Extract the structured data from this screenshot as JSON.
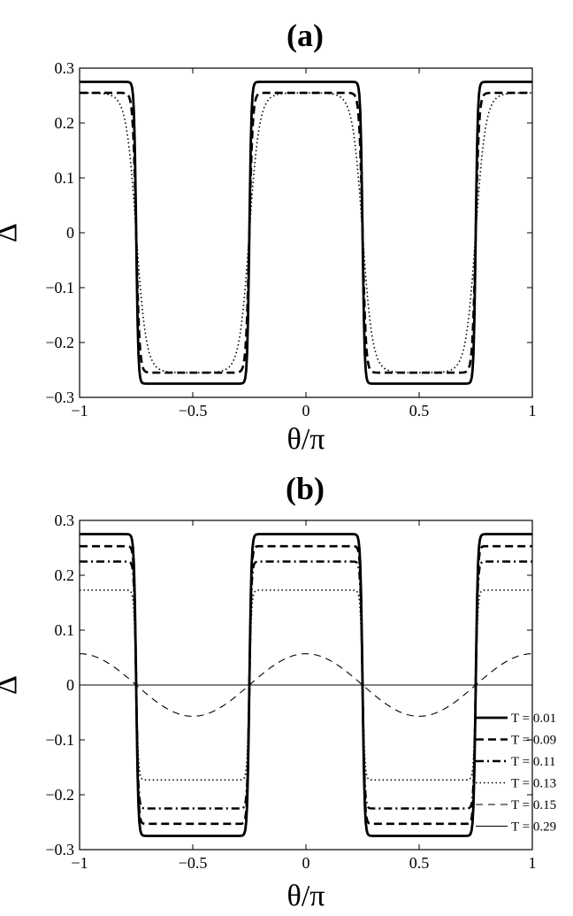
{
  "chart_data": [
    {
      "type": "line",
      "title": "(a)",
      "xlabel": "θ/π",
      "ylabel": "Δ",
      "xlim": [
        -1,
        1
      ],
      "ylim": [
        -0.3,
        0.3
      ],
      "xticks": [
        "−1",
        "−0.5",
        "0",
        "0.5",
        "1"
      ],
      "yticks": [
        "0.3",
        "0.2",
        "0.1",
        "0",
        "−0.1",
        "−0.2",
        "−0.3"
      ],
      "grid": false,
      "series": [
        {
          "style": "solid-thick",
          "amplitude": 0.275,
          "sharpness": 0.97
        },
        {
          "style": "dashed",
          "amplitude": 0.255,
          "sharpness": 0.6
        },
        {
          "style": "dotted",
          "amplitude": 0.255,
          "sharpness": 0.2
        }
      ]
    },
    {
      "type": "line",
      "title": "(b)",
      "xlabel": "θ/π",
      "ylabel": "Δ",
      "xlim": [
        -1,
        1
      ],
      "ylim": [
        -0.3,
        0.3
      ],
      "xticks": [
        "−1",
        "−0.5",
        "0",
        "0.5",
        "1"
      ],
      "yticks": [
        "0.3",
        "0.2",
        "0.1",
        "0",
        "−0.1",
        "−0.2",
        "−0.3"
      ],
      "grid": false,
      "legend_position": "lower-right",
      "series": [
        {
          "name": "T = 0.01",
          "style": "solid-thick",
          "amplitude": 0.275,
          "sharpness": 0.96
        },
        {
          "name": "T = 0.09",
          "style": "dashed",
          "amplitude": 0.253,
          "sharpness": 0.955
        },
        {
          "name": "T = 0.11",
          "style": "dashdot",
          "amplitude": 0.225,
          "sharpness": 0.95
        },
        {
          "name": "T = 0.13",
          "style": "dotted",
          "amplitude": 0.173,
          "sharpness": 0.9
        },
        {
          "name": "T = 0.15",
          "style": "thin-dashed",
          "amplitude": 0.057,
          "sharpness": 0
        },
        {
          "name": "T = 0.29",
          "style": "thin-solid",
          "amplitude": 0,
          "sharpness": 0
        }
      ]
    }
  ]
}
